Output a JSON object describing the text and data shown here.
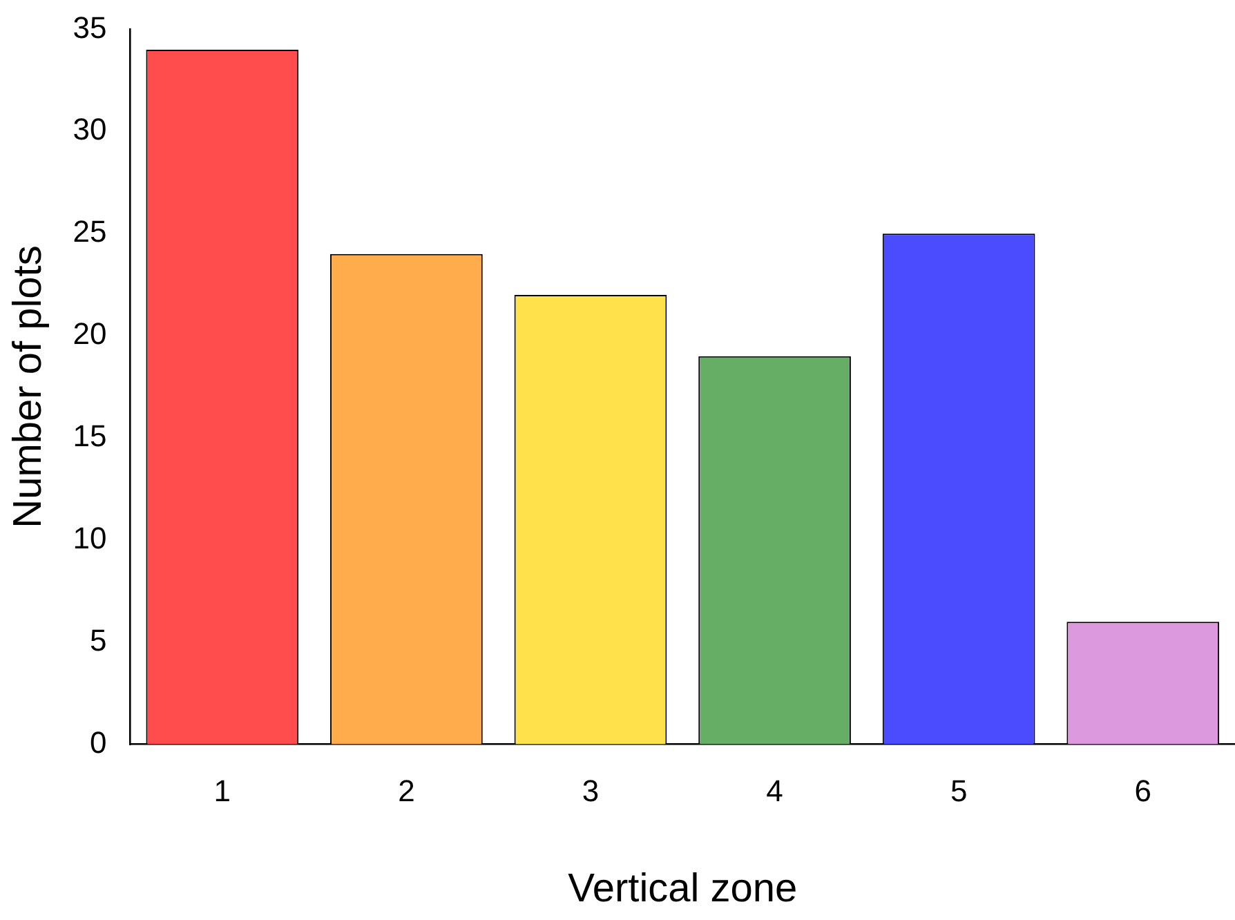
{
  "chart_data": {
    "type": "bar",
    "xlabel": "Vertical zone",
    "ylabel": "Number of plots",
    "categories": [
      "1",
      "2",
      "3",
      "4",
      "5",
      "6"
    ],
    "values": [
      34,
      24,
      22,
      19,
      25,
      6
    ],
    "colors": [
      "#ff4c4c",
      "#ffad4c",
      "#ffe14c",
      "#66ad66",
      "#4c4cff",
      "#dd99dd"
    ],
    "ylim": [
      0,
      35
    ],
    "yticks": [
      0,
      5,
      10,
      15,
      20,
      25,
      30,
      35
    ],
    "grid": false,
    "legend": false
  }
}
